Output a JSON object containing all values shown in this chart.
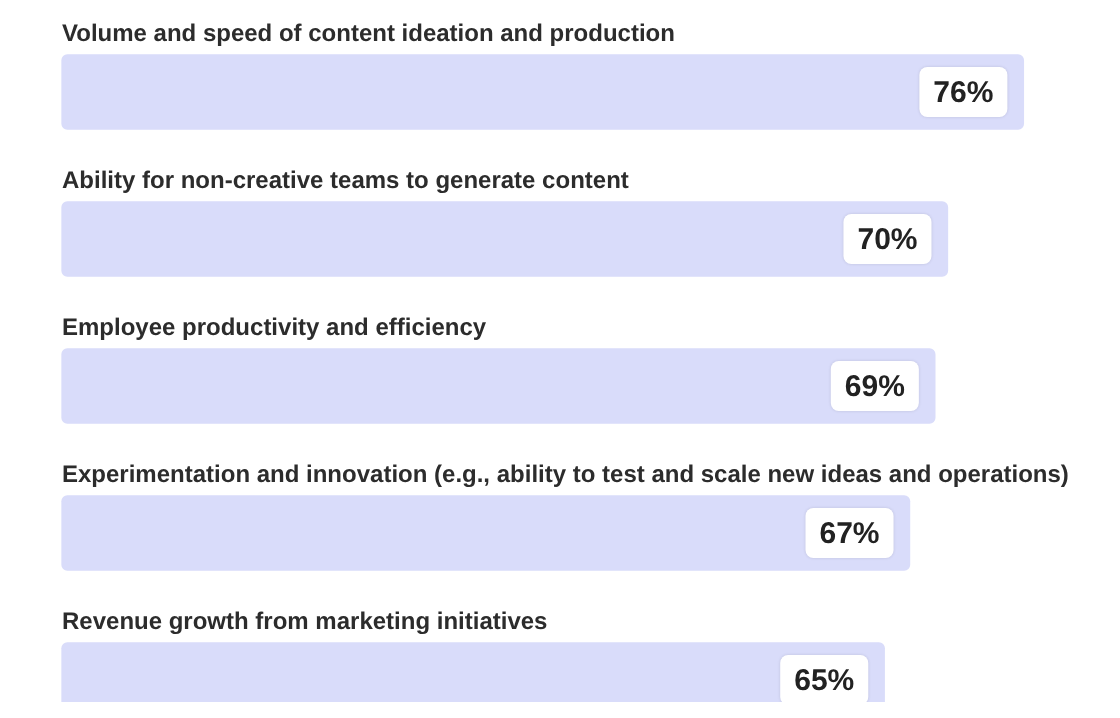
{
  "chart_data": {
    "type": "bar",
    "orientation": "horizontal",
    "categories": [
      "Volume and speed of content ideation and production",
      "Ability for non-creative teams to generate content",
      "Employee productivity and efficiency",
      "Experimentation and innovation (e.g., ability to test and scale new ideas and operations)",
      "Revenue growth from marketing initiatives"
    ],
    "values": [
      76,
      70,
      69,
      67,
      65
    ],
    "value_labels": [
      "76%",
      "70%",
      "69%",
      "67%",
      "65%"
    ],
    "color": "#d9dcfa"
  }
}
